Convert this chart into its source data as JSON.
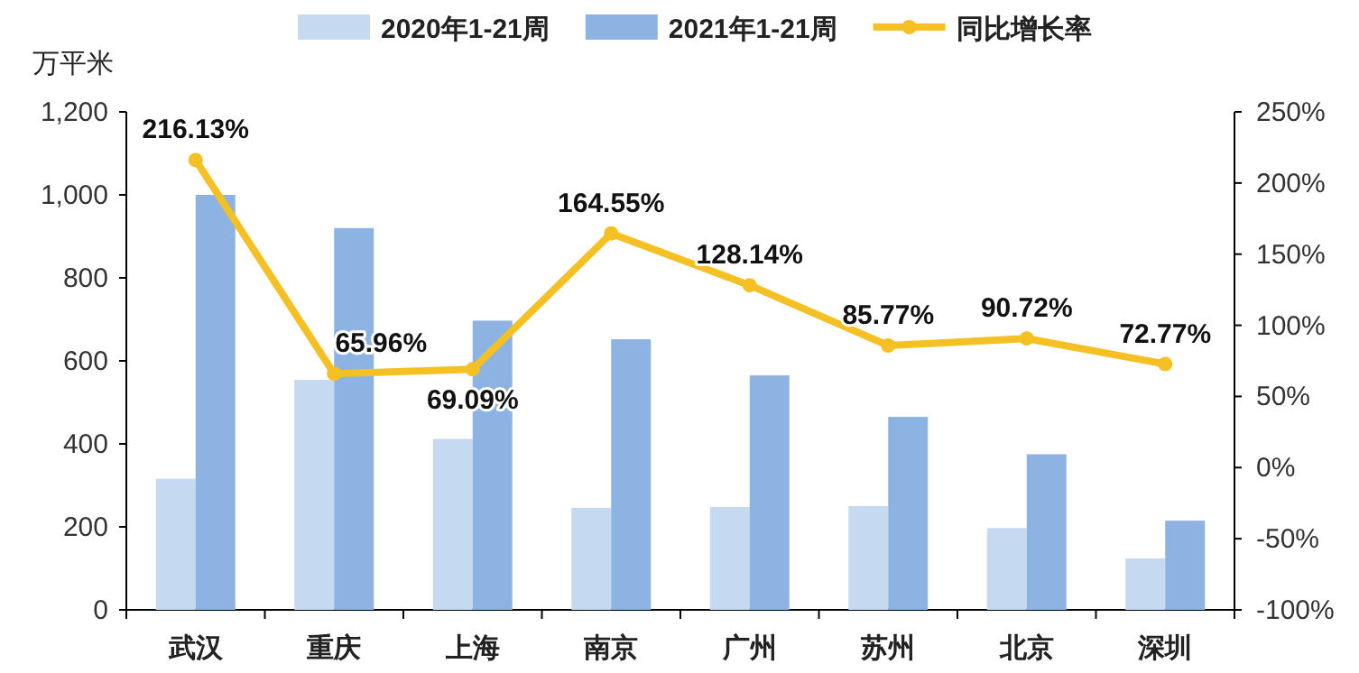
{
  "chart_data": {
    "type": "bar",
    "ylabel": "万平米",
    "categories": [
      "武汉",
      "重庆",
      "上海",
      "南京",
      "广州",
      "苏州",
      "北京",
      "深圳"
    ],
    "series": [
      {
        "name": "2020年1-21周",
        "color": "#c5d9f1",
        "values": [
          316,
          554,
          412,
          246,
          248,
          250,
          197,
          124
        ]
      },
      {
        "name": "2021年1-21周",
        "color": "#8db3e2",
        "values": [
          1000,
          920,
          697,
          652,
          565,
          465,
          375,
          215
        ]
      },
      {
        "name": "同比增长率",
        "type": "line",
        "axis": "y2",
        "color": "#f5c023",
        "marker": "circle",
        "data_labels": true,
        "value_labels": [
          "216.13%",
          "65.96%",
          "69.09%",
          "164.55%",
          "128.14%",
          "85.77%",
          "90.72%",
          "72.77%"
        ],
        "values": [
          216.13,
          65.96,
          69.09,
          164.55,
          128.14,
          85.77,
          90.72,
          72.77
        ]
      }
    ],
    "ylim": [
      0,
      1200
    ],
    "yticks": [
      {
        "value": 0,
        "label": "0"
      },
      {
        "value": 200,
        "label": "200"
      },
      {
        "value": 400,
        "label": "400"
      },
      {
        "value": 600,
        "label": "600"
      },
      {
        "value": 800,
        "label": "800"
      },
      {
        "value": 1000,
        "label": "1,000"
      },
      {
        "value": 1200,
        "label": "1,200"
      }
    ],
    "y2lim": [
      -100,
      250
    ],
    "y2ticks": [
      {
        "value": -100,
        "label": "-100%"
      },
      {
        "value": -50,
        "label": "-50%"
      },
      {
        "value": 0,
        "label": "0%"
      },
      {
        "value": 50,
        "label": "50%"
      },
      {
        "value": 100,
        "label": "100%"
      },
      {
        "value": 150,
        "label": "150%"
      },
      {
        "value": 200,
        "label": "200%"
      },
      {
        "value": 250,
        "label": "250%"
      }
    ],
    "legend": "top",
    "grid": false
  }
}
